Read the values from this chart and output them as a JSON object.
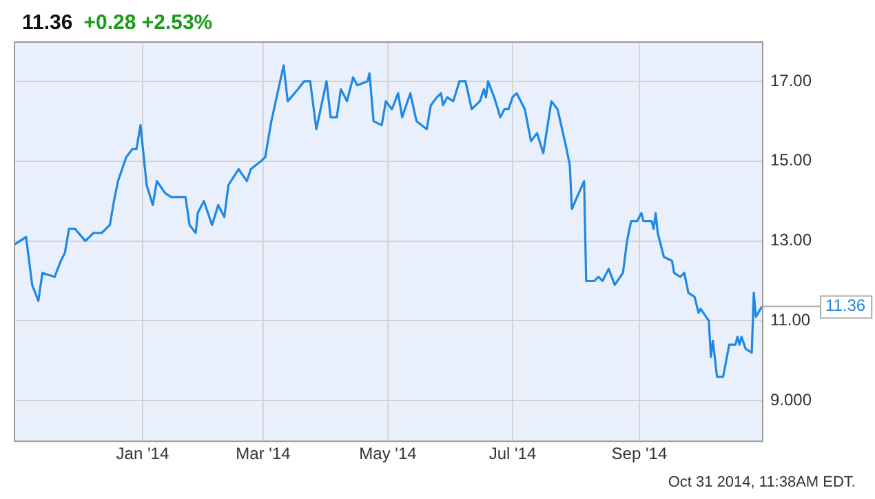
{
  "chart_data": {
    "type": "line",
    "title": "11.36",
    "subtitle": "+0.28 +2.53%",
    "x": [
      "2013-10-30",
      "2013-11-05",
      "2013-11-08",
      "2013-11-11",
      "2013-11-13",
      "2013-11-19",
      "2013-11-22",
      "2013-11-24",
      "2013-11-26",
      "2013-11-29",
      "2013-12-04",
      "2013-12-08",
      "2013-12-12",
      "2013-12-16",
      "2013-12-18",
      "2013-12-20",
      "2013-12-24",
      "2013-12-27",
      "2013-12-29",
      "2013-12-31",
      "2014-01-03",
      "2014-01-06",
      "2014-01-08",
      "2014-01-12",
      "2014-01-15",
      "2014-01-22",
      "2014-01-24",
      "2014-01-27",
      "2014-01-28",
      "2014-01-31",
      "2014-02-04",
      "2014-02-07",
      "2014-02-10",
      "2014-02-12",
      "2014-02-17",
      "2014-02-21",
      "2014-02-23",
      "2014-02-28",
      "2014-03-02",
      "2014-03-05",
      "2014-03-08",
      "2014-03-11",
      "2014-03-13",
      "2014-03-18",
      "2014-03-21",
      "2014-03-24",
      "2014-03-27",
      "2014-04-01",
      "2014-04-03",
      "2014-04-06",
      "2014-04-08",
      "2014-04-11",
      "2014-04-14",
      "2014-04-16",
      "2014-04-21",
      "2014-04-22",
      "2014-04-24",
      "2014-04-28",
      "2014-04-30",
      "2014-05-03",
      "2014-05-06",
      "2014-05-08",
      "2014-05-12",
      "2014-05-15",
      "2014-05-20",
      "2014-05-22",
      "2014-05-25",
      "2014-05-27",
      "2014-05-28",
      "2014-05-30",
      "2014-06-02",
      "2014-06-05",
      "2014-06-08",
      "2014-06-11",
      "2014-06-15",
      "2014-06-17",
      "2014-06-18",
      "2014-06-19",
      "2014-06-22",
      "2014-06-25",
      "2014-06-27",
      "2014-06-29",
      "2014-07-01",
      "2014-07-03",
      "2014-07-07",
      "2014-07-10",
      "2014-07-13",
      "2014-07-16",
      "2014-07-20",
      "2014-07-23",
      "2014-07-27",
      "2014-07-29",
      "2014-07-30",
      "2014-08-05",
      "2014-08-06",
      "2014-08-10",
      "2014-08-12",
      "2014-08-14",
      "2014-08-17",
      "2014-08-20",
      "2014-08-24",
      "2014-08-26",
      "2014-08-28",
      "2014-08-31",
      "2014-09-02",
      "2014-09-03",
      "2014-09-07",
      "2014-09-08",
      "2014-09-09",
      "2014-09-10",
      "2014-09-13",
      "2014-09-17",
      "2014-09-18",
      "2014-09-21",
      "2014-09-23",
      "2014-09-25",
      "2014-09-28",
      "2014-09-30",
      "2014-10-01",
      "2014-10-05",
      "2014-10-06",
      "2014-10-07",
      "2014-10-09",
      "2014-10-12",
      "2014-10-15",
      "2014-10-18",
      "2014-10-19",
      "2014-10-20",
      "2014-10-21",
      "2014-10-23",
      "2014-10-26",
      "2014-10-27",
      "2014-10-28",
      "2014-10-31"
    ],
    "series": [
      {
        "color": "#1e88e5",
        "values": [
          12.9,
          13.1,
          11.9,
          11.5,
          12.2,
          12.1,
          12.5,
          12.7,
          13.3,
          13.3,
          13.0,
          13.2,
          13.2,
          13.4,
          14.0,
          14.5,
          15.1,
          15.3,
          15.3,
          15.9,
          14.4,
          13.9,
          14.5,
          14.2,
          14.1,
          14.1,
          13.4,
          13.2,
          13.7,
          14.0,
          13.4,
          13.9,
          13.6,
          14.4,
          14.8,
          14.5,
          14.8,
          15.0,
          15.1,
          16.0,
          16.7,
          17.4,
          16.5,
          16.8,
          17.0,
          17.0,
          15.8,
          17.0,
          16.1,
          16.1,
          16.8,
          16.5,
          17.1,
          16.9,
          17.0,
          17.2,
          16.0,
          15.9,
          16.5,
          16.3,
          16.7,
          16.1,
          16.7,
          16.0,
          15.8,
          16.4,
          16.6,
          16.7,
          16.4,
          16.6,
          16.5,
          17.0,
          17.0,
          16.3,
          16.5,
          16.8,
          16.6,
          17.0,
          16.6,
          16.1,
          16.3,
          16.3,
          16.6,
          16.7,
          16.3,
          15.5,
          15.7,
          15.2,
          16.5,
          16.3,
          15.4,
          14.9,
          13.8,
          14.5,
          12.0,
          12.0,
          12.1,
          12.0,
          12.3,
          11.9,
          12.2,
          13.0,
          13.5,
          13.5,
          13.7,
          13.5,
          13.5,
          13.3,
          13.7,
          13.2,
          12.6,
          12.5,
          12.2,
          12.1,
          12.2,
          11.7,
          11.6,
          11.2,
          11.3,
          11.0,
          10.1,
          10.5,
          9.6,
          9.6,
          10.4,
          10.4,
          10.6,
          10.4,
          10.6,
          10.3,
          10.2,
          11.7,
          11.1,
          11.36
        ]
      }
    ],
    "xlim": [
      "2013-10-30",
      "2014-10-31"
    ],
    "xticks": [
      {
        "value": "2014-01-01",
        "label": "Jan '14"
      },
      {
        "value": "2014-03-01",
        "label": "Mar '14"
      },
      {
        "value": "2014-05-01",
        "label": "May '14"
      },
      {
        "value": "2014-07-01",
        "label": "Jul '14"
      },
      {
        "value": "2014-09-01",
        "label": "Sep '14"
      }
    ],
    "ylim": [
      8,
      18
    ],
    "yticks": [
      {
        "value": 9,
        "label": "9.000"
      },
      {
        "value": 11,
        "label": "11.00"
      },
      {
        "value": 13,
        "label": "13.00"
      },
      {
        "value": 15,
        "label": "15.00"
      },
      {
        "value": 17,
        "label": "17.00"
      }
    ],
    "grid": true,
    "legend": false,
    "marker": "none",
    "line_style": "solid",
    "annotations": [
      {
        "text": "11.36",
        "x": "2014-10-31",
        "y": 11.36
      },
      "Oct 31 2014, 11:38AM EDT."
    ]
  }
}
